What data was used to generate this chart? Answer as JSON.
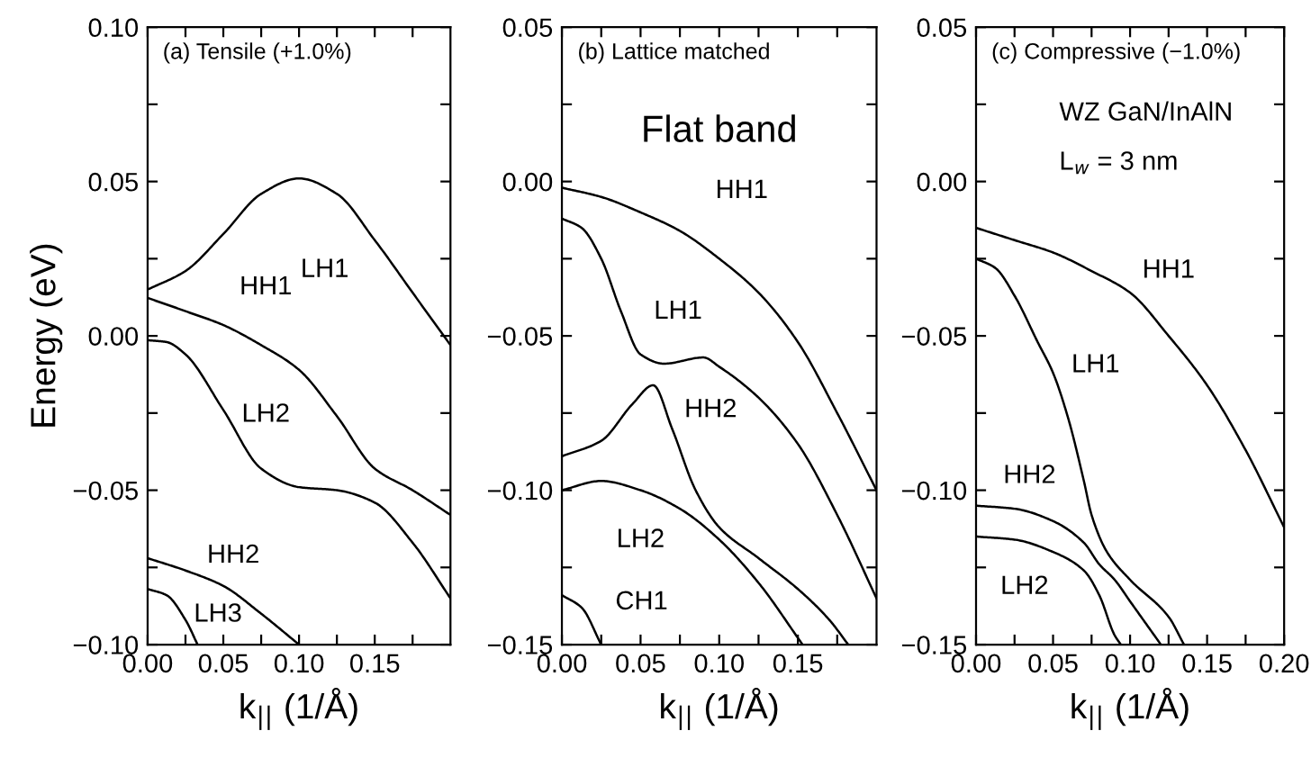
{
  "chart_data": [
    {
      "type": "line",
      "title": "(a) Tensile (+1.0%)",
      "xlabel": "k$_{||}$ (1/Å)",
      "ylabel": "Energy (eV)",
      "xlim": [
        0,
        0.2
      ],
      "xticks": [
        {
          "value": 0,
          "label": "0.00"
        },
        {
          "value": 0.025,
          "label": null
        },
        {
          "value": 0.05,
          "label": "0.05"
        },
        {
          "value": 0.075,
          "label": null
        },
        {
          "value": 0.1,
          "label": "0.10"
        },
        {
          "value": 0.125,
          "label": null
        },
        {
          "value": 0.15,
          "label": "0.15"
        },
        {
          "value": 0.175,
          "label": null
        }
      ],
      "ylim": [
        -0.1,
        0.1
      ],
      "yticks": [
        {
          "value": -0.1,
          "label": "−0.10"
        },
        {
          "value": -0.075,
          "label": null
        },
        {
          "value": -0.05,
          "label": "−0.05"
        },
        {
          "value": -0.025,
          "label": null
        },
        {
          "value": 0,
          "label": "0.00"
        },
        {
          "value": 0.025,
          "label": null
        },
        {
          "value": 0.05,
          "label": "0.05"
        },
        {
          "value": 0.075,
          "label": null
        },
        {
          "value": 0.1,
          "label": "0.10"
        }
      ],
      "series": [
        {
          "name": "LH1",
          "color": "#000000",
          "x": [
            0,
            0.025,
            0.05,
            0.075,
            0.1,
            0.125,
            0.15,
            0.175,
            0.2
          ],
          "values": [
            0.015,
            0.021,
            0.033,
            0.046,
            0.051,
            0.046,
            0.031,
            0.014,
            -0.003
          ]
        },
        {
          "name": "HH1",
          "color": "#000000",
          "x": [
            0,
            0.025,
            0.05,
            0.075,
            0.1,
            0.125,
            0.15,
            0.175,
            0.2
          ],
          "values": [
            0.0123,
            0.008,
            0.0035,
            -0.003,
            -0.011,
            -0.026,
            -0.043,
            -0.05,
            -0.058
          ]
        },
        {
          "name": "LH2",
          "color": "#000000",
          "x": [
            0,
            0.0125,
            0.025,
            0.05,
            0.075,
            0.1,
            0.125,
            0.15,
            0.175,
            0.2
          ],
          "values": [
            -0.0014,
            -0.002,
            -0.006,
            -0.024,
            -0.043,
            -0.049,
            -0.05,
            -0.054,
            -0.067,
            -0.085
          ]
        },
        {
          "name": "HH2",
          "color": "#000000",
          "x": [
            0,
            0.025,
            0.05,
            0.075,
            0.1
          ],
          "values": [
            -0.072,
            -0.076,
            -0.081,
            -0.09,
            -0.1
          ]
        },
        {
          "name": "LH3",
          "color": "#000000",
          "x": [
            0,
            0.0125,
            0.025,
            0.033
          ],
          "values": [
            -0.082,
            -0.084,
            -0.092,
            -0.1
          ]
        }
      ],
      "tick_labels": "xy",
      "line_style": "solid",
      "marker": "none",
      "grid": false,
      "legend": false
    },
    {
      "type": "line",
      "title": "(b) Lattice matched",
      "xlabel": "k$_{||}$ (1/Å)",
      "xlim": [
        0,
        0.2
      ],
      "xticks": [
        {
          "value": 0,
          "label": "0.00"
        },
        {
          "value": 0.025,
          "label": null
        },
        {
          "value": 0.05,
          "label": "0.05"
        },
        {
          "value": 0.075,
          "label": null
        },
        {
          "value": 0.1,
          "label": "0.10"
        },
        {
          "value": 0.125,
          "label": null
        },
        {
          "value": 0.15,
          "label": "0.15"
        },
        {
          "value": 0.175,
          "label": null
        }
      ],
      "ylim": [
        -0.15,
        0.05
      ],
      "yticks": [
        {
          "value": -0.15,
          "label": "−0.15"
        },
        {
          "value": -0.125,
          "label": null
        },
        {
          "value": -0.1,
          "label": "−0.10"
        },
        {
          "value": -0.075,
          "label": null
        },
        {
          "value": -0.05,
          "label": "−0.05"
        },
        {
          "value": -0.025,
          "label": null
        },
        {
          "value": 0,
          "label": "0.00"
        },
        {
          "value": 0.025,
          "label": null
        },
        {
          "value": 0.05,
          "label": "0.05"
        }
      ],
      "series": [
        {
          "name": "HH1",
          "color": "#000000",
          "x": [
            0,
            0.025,
            0.05,
            0.075,
            0.1,
            0.125,
            0.15,
            0.175,
            0.2
          ],
          "values": [
            -0.002,
            -0.005,
            -0.01,
            -0.016,
            -0.025,
            -0.036,
            -0.052,
            -0.075,
            -0.1
          ]
        },
        {
          "name": "LH1",
          "color": "#000000",
          "x": [
            0,
            0.0125,
            0.025,
            0.0375,
            0.05,
            0.065,
            0.09,
            0.1,
            0.125,
            0.15,
            0.175,
            0.2
          ],
          "values": [
            -0.012,
            -0.015,
            -0.025,
            -0.042,
            -0.056,
            -0.059,
            -0.057,
            -0.06,
            -0.07,
            -0.085,
            -0.108,
            -0.135
          ]
        },
        {
          "name": "HH2",
          "color": "#000000",
          "x": [
            0,
            0.025,
            0.045,
            0.058,
            0.07,
            0.085,
            0.1,
            0.125,
            0.15,
            0.17,
            0.182
          ],
          "values": [
            -0.089,
            -0.084,
            -0.072,
            -0.066,
            -0.08,
            -0.1,
            -0.112,
            -0.122,
            -0.132,
            -0.142,
            -0.15
          ]
        },
        {
          "name": "LH2",
          "color": "#000000",
          "x": [
            0,
            0.025,
            0.05,
            0.075,
            0.1,
            0.125,
            0.153
          ],
          "values": [
            -0.1,
            -0.097,
            -0.1,
            -0.106,
            -0.116,
            -0.13,
            -0.15
          ]
        },
        {
          "name": "CH1",
          "color": "#000000",
          "x": [
            0,
            0.0125,
            0.025
          ],
          "values": [
            -0.134,
            -0.138,
            -0.15
          ]
        }
      ],
      "annotations": [
        "Flat band"
      ],
      "tick_labels": "xy",
      "line_style": "solid",
      "marker": "none",
      "grid": false,
      "legend": false
    },
    {
      "type": "line",
      "title": "(c) Compressive (−1.0%)",
      "xlabel": "k$_{||}$ (1/Å)",
      "xlim": [
        0,
        0.2
      ],
      "xticks": [
        {
          "value": 0,
          "label": "0.00"
        },
        {
          "value": 0.025,
          "label": null
        },
        {
          "value": 0.05,
          "label": "0.05"
        },
        {
          "value": 0.075,
          "label": null
        },
        {
          "value": 0.1,
          "label": "0.10"
        },
        {
          "value": 0.125,
          "label": null
        },
        {
          "value": 0.15,
          "label": "0.15"
        },
        {
          "value": 0.175,
          "label": null
        },
        {
          "value": 0.2,
          "label": "0.20"
        }
      ],
      "ylim": [
        -0.15,
        0.05
      ],
      "yticks": [
        {
          "value": -0.15,
          "label": "−0.15"
        },
        {
          "value": -0.125,
          "label": null
        },
        {
          "value": -0.1,
          "label": "−0.10"
        },
        {
          "value": -0.075,
          "label": null
        },
        {
          "value": -0.05,
          "label": "−0.05"
        },
        {
          "value": -0.025,
          "label": null
        },
        {
          "value": 0,
          "label": "0.00"
        },
        {
          "value": 0.025,
          "label": null
        },
        {
          "value": 0.05,
          "label": "0.05"
        }
      ],
      "series": [
        {
          "name": "HH1",
          "color": "#000000",
          "x": [
            0,
            0.025,
            0.05,
            0.075,
            0.1,
            0.125,
            0.15,
            0.175,
            0.2
          ],
          "values": [
            -0.015,
            -0.019,
            -0.023,
            -0.029,
            -0.036,
            -0.05,
            -0.066,
            -0.087,
            -0.112
          ]
        },
        {
          "name": "LH1",
          "color": "#000000",
          "x": [
            0,
            0.0125,
            0.025,
            0.04,
            0.05,
            0.06,
            0.07,
            0.075,
            0.085,
            0.1,
            0.125,
            0.135
          ],
          "values": [
            -0.025,
            -0.028,
            -0.037,
            -0.052,
            -0.062,
            -0.077,
            -0.097,
            -0.108,
            -0.12,
            -0.129,
            -0.141,
            -0.15
          ]
        },
        {
          "name": "HH2",
          "color": "#000000",
          "x": [
            0,
            0.025,
            0.05,
            0.07,
            0.08,
            0.09,
            0.1,
            0.12
          ],
          "values": [
            -0.105,
            -0.106,
            -0.11,
            -0.117,
            -0.124,
            -0.129,
            -0.136,
            -0.15
          ]
        },
        {
          "name": "LH2",
          "color": "#000000",
          "x": [
            0,
            0.025,
            0.05,
            0.07,
            0.08,
            0.09,
            0.094
          ],
          "values": [
            -0.115,
            -0.116,
            -0.12,
            -0.126,
            -0.134,
            -0.147,
            -0.15
          ]
        }
      ],
      "annotations": [
        "WZ GaN/InAlN",
        "L$_{w}$ = 3 nm"
      ],
      "tick_labels": "xy",
      "line_style": "solid",
      "marker": "none",
      "grid": false,
      "legend": false
    }
  ]
}
